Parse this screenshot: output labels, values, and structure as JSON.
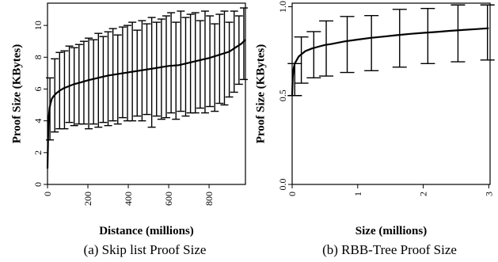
{
  "chart_data": [
    {
      "id": "a",
      "type": "line",
      "error_bars": true,
      "caption": "(a) Skip list Proof Size",
      "xlabel": "Distance (millions)",
      "ylabel": "Proof Size (KBytes)",
      "xlim": [
        0,
        980
      ],
      "ylim": [
        0,
        11.4
      ],
      "xticks": [
        0,
        200,
        400,
        600,
        800
      ],
      "yticks": [
        0,
        2,
        4,
        6,
        8,
        10
      ],
      "grid": false,
      "legend": "none",
      "mean_curve": {
        "x": [
          0,
          3,
          6,
          10,
          15,
          22,
          30,
          45,
          60,
          80,
          100,
          130,
          160,
          200,
          250,
          300,
          350,
          400,
          450,
          500,
          550,
          600,
          650,
          700,
          750,
          800,
          850,
          900,
          930,
          960,
          980
        ],
        "y": [
          1.0,
          3.0,
          4.2,
          4.8,
          5.1,
          5.4,
          5.55,
          5.75,
          5.9,
          6.05,
          6.15,
          6.3,
          6.4,
          6.55,
          6.7,
          6.85,
          6.95,
          7.05,
          7.15,
          7.25,
          7.35,
          7.45,
          7.5,
          7.65,
          7.8,
          7.95,
          8.15,
          8.35,
          8.6,
          8.85,
          9.1
        ]
      },
      "error_bars_data": {
        "x": [
          12,
          36,
          60,
          84,
          108,
          132,
          156,
          180,
          204,
          228,
          252,
          276,
          300,
          324,
          348,
          372,
          396,
          420,
          444,
          468,
          492,
          516,
          540,
          564,
          588,
          612,
          636,
          660,
          684,
          708,
          732,
          756,
          780,
          804,
          828,
          852,
          876,
          900,
          924,
          948,
          972
        ],
        "low": [
          2.8,
          3.3,
          3.5,
          3.5,
          3.9,
          3.7,
          3.8,
          3.8,
          3.5,
          3.8,
          3.6,
          3.9,
          3.7,
          4.0,
          3.8,
          4.2,
          4.0,
          4.0,
          4.3,
          4.0,
          4.4,
          3.6,
          4.3,
          4.1,
          4.2,
          4.5,
          4.1,
          4.6,
          4.3,
          4.5,
          4.5,
          4.8,
          4.5,
          4.9,
          4.6,
          5.1,
          5.0,
          5.5,
          5.8,
          6.3,
          6.6
        ],
        "high": [
          6.7,
          7.9,
          8.3,
          8.4,
          8.7,
          8.6,
          8.8,
          9.0,
          9.2,
          9.1,
          9.5,
          9.3,
          9.6,
          9.8,
          9.4,
          9.9,
          10.0,
          10.2,
          9.7,
          10.3,
          10.1,
          10.5,
          10.2,
          10.4,
          10.6,
          10.8,
          10.2,
          10.9,
          10.5,
          10.7,
          10.8,
          10.3,
          10.9,
          10.6,
          10.1,
          10.7,
          10.9,
          10.2,
          10.9,
          10.6,
          11.1
        ]
      }
    },
    {
      "id": "b",
      "type": "line",
      "error_bars": true,
      "caption": "(b) RBB-Tree Proof Size",
      "xlabel": "Size (millions)",
      "ylabel": "Proof Size (KBytes)",
      "xlim": [
        0,
        3.02
      ],
      "ylim": [
        0,
        1.02
      ],
      "xticks": [
        0,
        1,
        2,
        3
      ],
      "yticks": [
        0.0,
        0.5,
        1.0
      ],
      "ytick_labels": [
        "0.0",
        "0.5",
        "1.0"
      ],
      "grid": false,
      "legend": "none",
      "mean_curve": {
        "x": [
          0,
          0.005,
          0.01,
          0.02,
          0.04,
          0.07,
          0.1,
          0.15,
          0.2,
          0.3,
          0.4,
          0.5,
          0.6,
          0.8,
          1.0,
          1.2,
          1.4,
          1.6,
          1.8,
          2.0,
          2.2,
          2.4,
          2.6,
          2.8,
          3.0
        ],
        "y": [
          0.5,
          0.55,
          0.6,
          0.65,
          0.68,
          0.7,
          0.72,
          0.735,
          0.75,
          0.765,
          0.775,
          0.785,
          0.79,
          0.805,
          0.815,
          0.825,
          0.832,
          0.84,
          0.847,
          0.853,
          0.858,
          0.864,
          0.869,
          0.874,
          0.879
        ]
      },
      "error_bars_data": {
        "x": [
          0.04,
          0.14,
          0.33,
          0.52,
          0.84,
          1.21,
          1.64,
          2.07,
          2.53,
          2.98
        ],
        "low": [
          0.5,
          0.57,
          0.6,
          0.61,
          0.63,
          0.64,
          0.66,
          0.68,
          0.69,
          0.7
        ],
        "high": [
          0.68,
          0.83,
          0.86,
          0.92,
          0.945,
          0.95,
          0.985,
          0.99,
          1.01,
          1.01
        ]
      }
    }
  ]
}
